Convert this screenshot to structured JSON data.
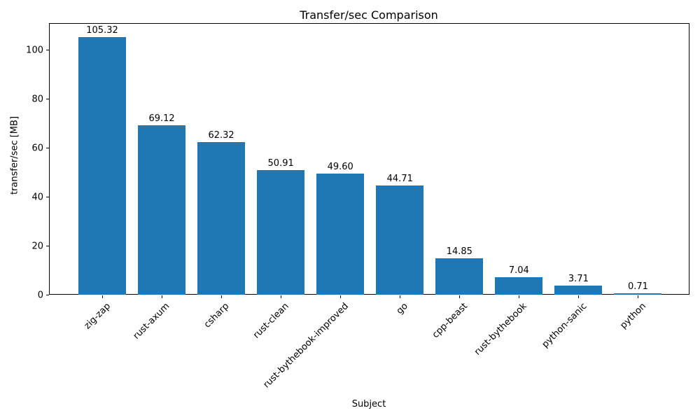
{
  "chart_data": {
    "type": "bar",
    "title": "Transfer/sec Comparison",
    "xlabel": "Subject",
    "ylabel": "transfer/sec [MB]",
    "categories": [
      "zig-zap",
      "rust-axum",
      "csharp",
      "rust-clean",
      "rust-bythebook-improved",
      "go",
      "cpp-beast",
      "rust-bythebook",
      "python-sanic",
      "python"
    ],
    "values": [
      105.32,
      69.12,
      62.32,
      50.91,
      49.6,
      44.71,
      14.85,
      7.04,
      3.71,
      0.71
    ],
    "value_labels": [
      "105.32",
      "69.12",
      "62.32",
      "50.91",
      "49.60",
      "44.71",
      "14.85",
      "7.04",
      "3.71",
      "0.71"
    ],
    "yticks": [
      0,
      20,
      40,
      60,
      80,
      100
    ],
    "ylim": [
      0,
      111
    ],
    "bar_color": "#1f77b4",
    "grid": false,
    "legend": null,
    "x_tick_rotation": 45
  }
}
